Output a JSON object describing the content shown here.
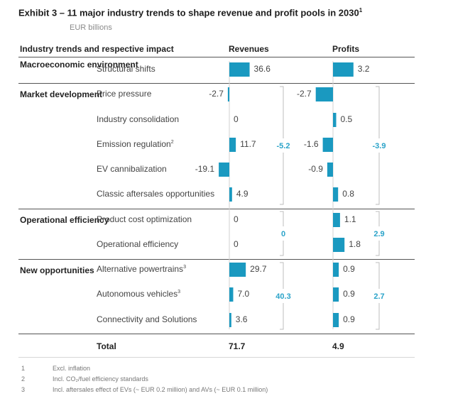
{
  "title": "Exhibit 3 – 11 major industry trends to shape revenue and profit pools in 2030",
  "title_sup": "1",
  "subtitle": "EUR billions",
  "headers": {
    "trends": "Industry trends and respective impact",
    "revenues": "Revenues",
    "profits": "Profits"
  },
  "colors": {
    "bar": "#1a99c0",
    "group_value": "#2aa3c9",
    "bracket": "#bdbdbd"
  },
  "chart_data": {
    "type": "bar",
    "title": "Exhibit 3 – 11 major industry trends to shape revenue and profit pools in 2030",
    "unit": "EUR billions",
    "categories": [
      "Structural shifts",
      "Price pressure",
      "Industry consolidation",
      "Emission regulation",
      "EV cannibalization",
      "Classic aftersales opportunities",
      "Product cost optimization",
      "Operational efficiency",
      "Alternative powertrains",
      "Autonomous vehicles",
      "Connectivity and Solutions"
    ],
    "series": [
      {
        "name": "Revenues",
        "values": [
          36.6,
          -2.7,
          0,
          11.7,
          -19.1,
          4.9,
          0,
          0,
          29.7,
          7.0,
          3.6
        ],
        "labels": [
          "36.6",
          "-2.7",
          "0",
          "11.7",
          "-19.1",
          "4.9",
          "0",
          "0",
          "29.7",
          "7.0",
          "3.6"
        ]
      },
      {
        "name": "Profits",
        "values": [
          3.2,
          -2.7,
          0.5,
          -1.6,
          -0.9,
          0.8,
          1.1,
          1.8,
          0.9,
          0.9,
          0.9
        ],
        "labels": [
          "3.2",
          "-2.7",
          "0.5",
          "-1.6",
          "-0.9",
          "0.8",
          "1.1",
          "1.8",
          "0.9",
          "0.9",
          "0.9"
        ]
      }
    ],
    "groups": [
      {
        "name": "Macroeconomic environment",
        "rows": [
          0
        ]
      },
      {
        "name": "Market development",
        "rows": [
          1,
          2,
          3,
          4,
          5
        ],
        "revenue_sum": "-5.2",
        "profit_sum": "-3.9"
      },
      {
        "name": "Operational efficiency",
        "rows": [
          6,
          7
        ],
        "revenue_sum": "0",
        "profit_sum": "2.9"
      },
      {
        "name": "New opportunities",
        "rows": [
          8,
          9,
          10
        ],
        "revenue_sum": "40.3",
        "profit_sum": "2.7"
      }
    ],
    "row_label_sups": [
      "",
      "",
      "",
      "2",
      "",
      "",
      "",
      "",
      "3",
      "3",
      ""
    ],
    "totals": {
      "label": "Total",
      "revenues": "71.7",
      "profits": "4.9"
    }
  },
  "footnotes": [
    {
      "num": "1",
      "text": "Excl. inflation"
    },
    {
      "num": "2",
      "text": "Incl. CO₂/fuel efficiency standards"
    },
    {
      "num": "3",
      "text": "Incl. aftersales effect of EVs (~ EUR 0.2 million) and AVs (~ EUR 0.1 million)"
    }
  ]
}
